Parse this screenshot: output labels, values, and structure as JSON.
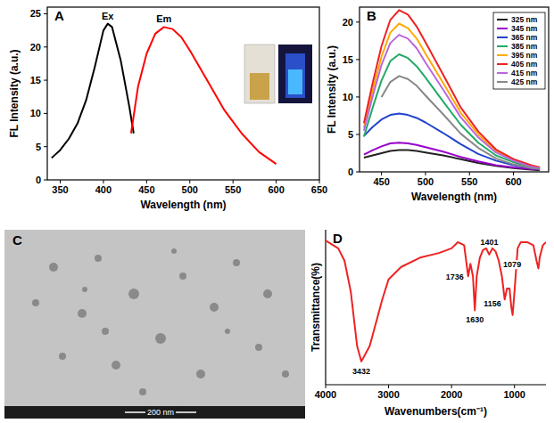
{
  "chart_data": [
    {
      "type": "line",
      "title": "A",
      "x_label": "Wavelength (nm)",
      "y_label": "FL Intensity (a.u.)",
      "xlim": [
        335,
        650
      ],
      "xticks": [
        350,
        400,
        450,
        500,
        550,
        600,
        650
      ],
      "ylim": [
        0,
        26
      ],
      "yticks": [
        0,
        5,
        10,
        15,
        20,
        25
      ],
      "series": [
        {
          "name": "Ex",
          "color": "#000000",
          "x": [
            340,
            350,
            360,
            370,
            380,
            390,
            400,
            405,
            410,
            420,
            430,
            435
          ],
          "values": [
            3.3,
            4.5,
            6.2,
            8.5,
            12,
            17,
            22.5,
            23.5,
            23,
            18,
            11,
            7
          ]
        },
        {
          "name": "Em",
          "color": "#ff0000",
          "x": [
            432,
            440,
            450,
            460,
            470,
            480,
            490,
            500,
            520,
            540,
            560,
            580,
            600
          ],
          "values": [
            7,
            14,
            19,
            22,
            23,
            22.7,
            21.5,
            19.5,
            15,
            10.5,
            7,
            4.2,
            2.4
          ]
        }
      ]
    },
    {
      "type": "line",
      "title": "B",
      "x_label": "Wavelength (nm)",
      "y_label": "FL Intensity (a.u.)",
      "xlim": [
        425,
        640
      ],
      "xticks": [
        450,
        500,
        550,
        600
      ],
      "ylim": [
        0,
        22
      ],
      "yticks": [
        0,
        5,
        10,
        15,
        20
      ],
      "legend": "top-right",
      "x": [
        430,
        440,
        450,
        460,
        470,
        480,
        490,
        500,
        520,
        540,
        560,
        580,
        600,
        620,
        630
      ],
      "series": [
        {
          "name": "325 nm",
          "color": "#222222",
          "values": [
            1.9,
            2.2,
            2.5,
            2.8,
            2.9,
            2.9,
            2.8,
            2.6,
            2.2,
            1.7,
            1.2,
            0.8,
            0.5,
            0.3,
            0.2
          ]
        },
        {
          "name": "345 nm",
          "color": "#9900cc",
          "values": [
            2.3,
            2.9,
            3.4,
            3.8,
            3.9,
            3.8,
            3.6,
            3.3,
            2.7,
            2.0,
            1.4,
            0.9,
            0.6,
            0.4,
            0.3
          ]
        },
        {
          "name": "365 nm",
          "color": "#2244cc",
          "values": [
            4.8,
            6.0,
            7.0,
            7.6,
            7.8,
            7.6,
            7.2,
            6.6,
            5.2,
            3.7,
            2.4,
            1.5,
            0.9,
            0.5,
            0.4
          ]
        },
        {
          "name": "385 nm",
          "color": "#22aa66",
          "values": [
            4.7,
            8.6,
            12.2,
            14.8,
            15.7,
            15.2,
            14.1,
            12.6,
            9.4,
            6.3,
            3.9,
            2.2,
            1.3,
            0.6,
            0.5
          ]
        },
        {
          "name": "395 nm",
          "color": "#ffaa00",
          "values": [
            5.9,
            10.9,
            15.4,
            18.6,
            19.8,
            19.2,
            17.8,
            15.8,
            11.9,
            7.9,
            5.0,
            2.8,
            1.6,
            0.8,
            0.6
          ]
        },
        {
          "name": "405 nm",
          "color": "#ee2222",
          "values": [
            6.5,
            11.9,
            16.8,
            20.3,
            21.6,
            21.0,
            19.4,
            17.3,
            13.0,
            8.6,
            5.4,
            3.0,
            1.7,
            0.9,
            0.6
          ]
        },
        {
          "name": "415 nm",
          "color": "#bb66dd",
          "values": [
            5.5,
            10.1,
            14.3,
            17.2,
            18.3,
            17.8,
            16.5,
            14.6,
            11.0,
            7.3,
            4.6,
            2.6,
            1.5,
            0.7,
            0.5
          ]
        },
        {
          "name": "425 nm",
          "color": "#888888",
          "values": [
            null,
            null,
            10.0,
            12.0,
            12.8,
            12.4,
            11.5,
            10.2,
            7.7,
            5.1,
            3.2,
            1.8,
            1.0,
            0.5,
            0.4
          ]
        }
      ]
    },
    {
      "type": "line",
      "title": "D",
      "x_label": "Wavenumbers(cm⁻¹)",
      "y_label": "Transmittance(%)",
      "xlim": [
        4000,
        500
      ],
      "xticks": [
        4000,
        3000,
        2000,
        1000
      ],
      "ylim": [
        0,
        100
      ],
      "tick_labels": "x",
      "series": [
        {
          "color": "#ee2222",
          "x": [
            4000,
            3800,
            3700,
            3600,
            3500,
            3432,
            3300,
            3200,
            3100,
            3000,
            2900,
            2800,
            2500,
            2200,
            2000,
            1900,
            1800,
            1736,
            1700,
            1660,
            1630,
            1600,
            1550,
            1500,
            1450,
            1401,
            1350,
            1300,
            1250,
            1200,
            1156,
            1120,
            1079,
            1050,
            1030,
            1000,
            950,
            900,
            800,
            700,
            650,
            620,
            600,
            550,
            500
          ],
          "values": [
            93,
            88,
            80,
            60,
            25,
            15,
            25,
            40,
            55,
            68,
            72,
            76,
            82,
            85,
            88,
            92,
            90,
            70,
            78,
            70,
            48,
            70,
            82,
            87,
            88,
            84,
            88,
            86,
            80,
            70,
            55,
            62,
            62,
            50,
            45,
            60,
            88,
            92,
            92,
            90,
            80,
            75,
            82,
            90,
            92
          ]
        }
      ],
      "annotations": [
        {
          "label": "3432",
          "x": 3432,
          "y": 15
        },
        {
          "label": "1736",
          "x": 1736,
          "y": 70
        },
        {
          "label": "1630",
          "x": 1630,
          "y": 48
        },
        {
          "label": "1401",
          "x": 1401,
          "y": 84
        },
        {
          "label": "1079",
          "x": 1079,
          "y": 62
        },
        {
          "label": "1156",
          "x": 1156,
          "y": 55
        }
      ]
    }
  ],
  "tem_image": {
    "title": "C",
    "scale_bar": "200 nm"
  }
}
